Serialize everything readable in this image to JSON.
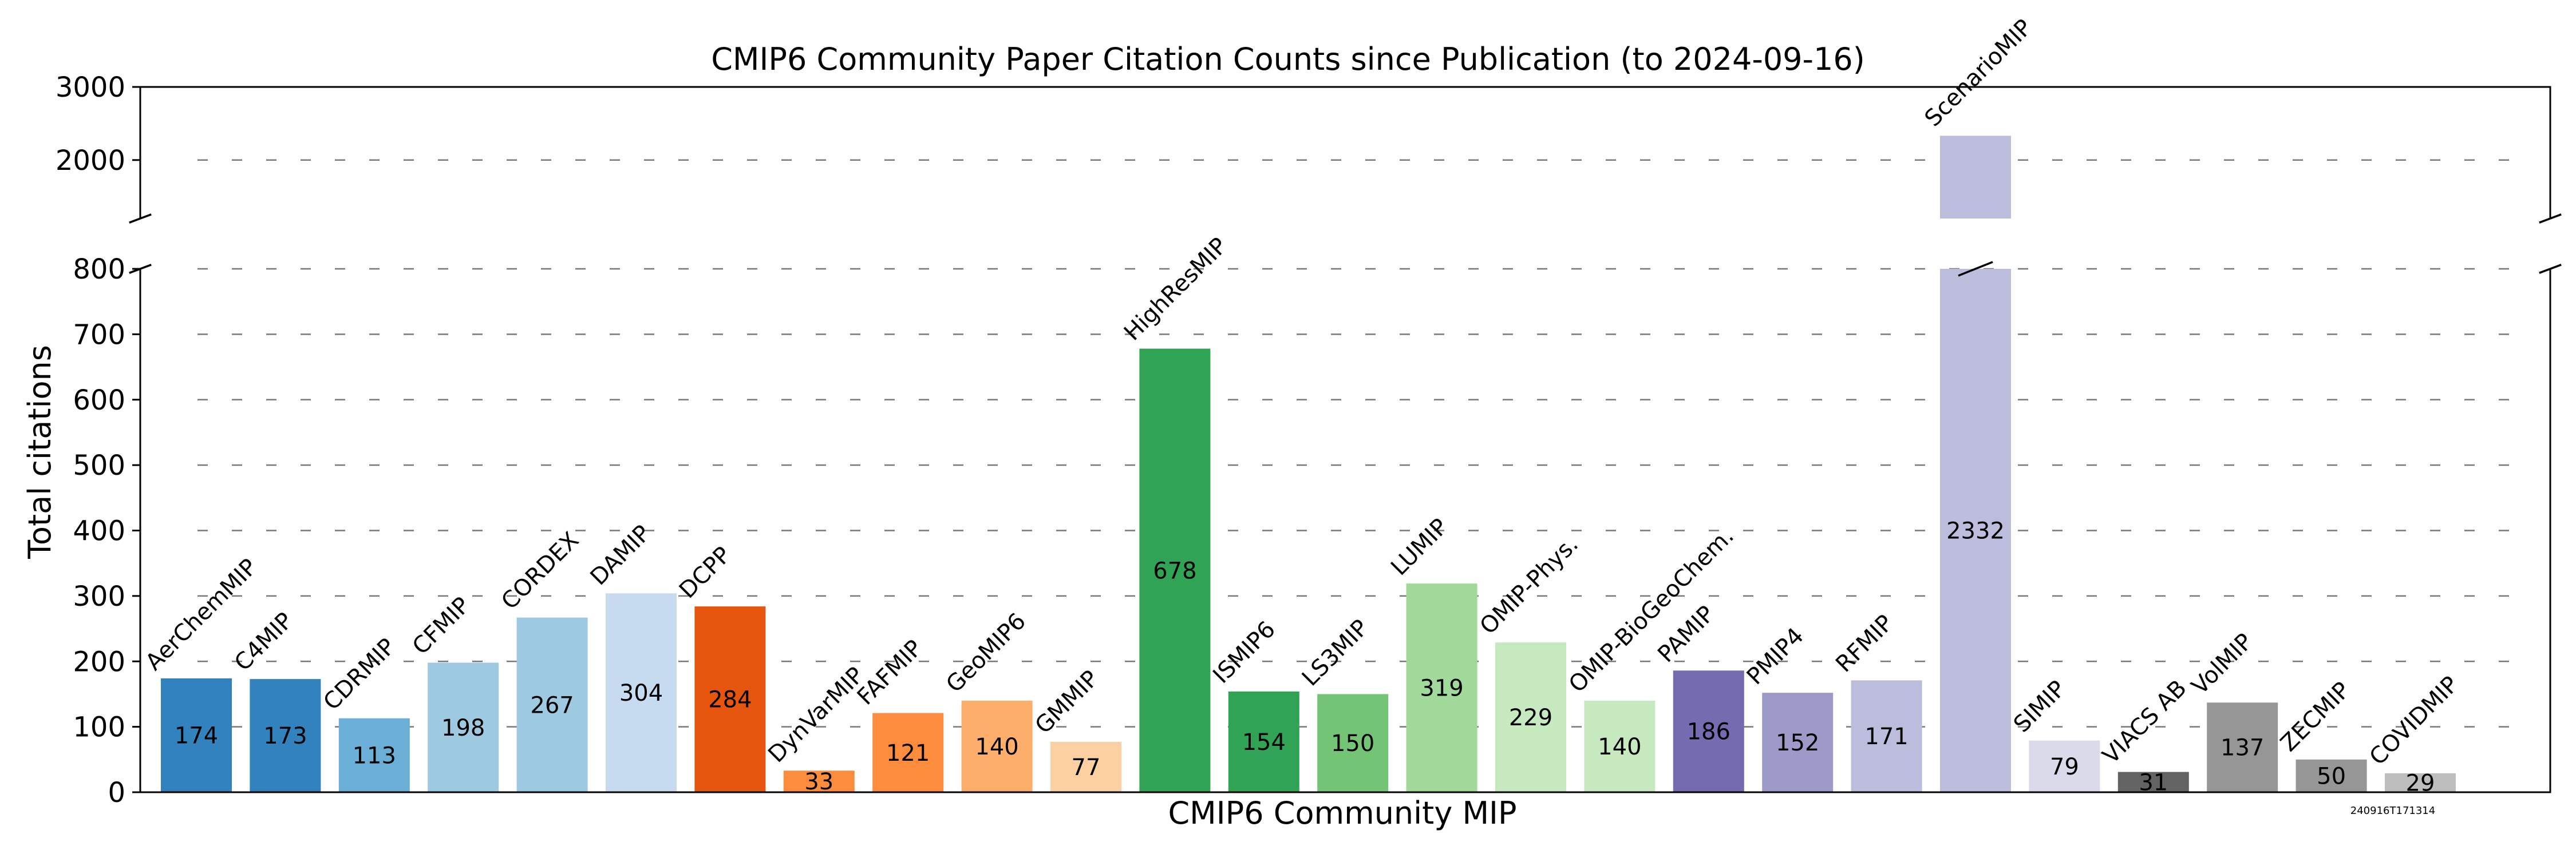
{
  "chart_data": {
    "type": "bar",
    "title": "CMIP6 Community Paper Citation Counts since Publication (to 2024-09-16)",
    "xlabel": "CMIP6 Community MIP",
    "ylabel": "Total citations",
    "broken_y_axis": true,
    "ylim_lower": [
      0,
      800
    ],
    "ylim_upper": [
      1200,
      3000
    ],
    "yticks_lower": [
      "0",
      "100",
      "200",
      "300",
      "400",
      "500",
      "600",
      "700",
      "800"
    ],
    "yticks_upper": [
      "2000",
      "3000"
    ],
    "grid": "horizontal dashed",
    "categories": [
      "AerChemMIP",
      "C4MIP",
      "CDRMIP",
      "CFMIP",
      "CORDEX",
      "DAMIP",
      "DCPP",
      "DynVarMIP",
      "FAFMIP",
      "GeoMIP6",
      "GMMIP",
      "HighResMIP",
      "ISMIP6",
      "LS3MIP",
      "LUMIP",
      "OMIP-Phys.",
      "OMIP-BioGeoChem.",
      "PAMIP",
      "PMIP4",
      "RFMIP",
      "ScenarioMIP",
      "SIMIP",
      "VIACS AB",
      "VolMIP",
      "ZECMIP",
      "COVIDMIP"
    ],
    "values": [
      174,
      173,
      113,
      198,
      267,
      304,
      284,
      33,
      121,
      140,
      77,
      678,
      154,
      150,
      319,
      229,
      140,
      186,
      152,
      171,
      2332,
      79,
      31,
      137,
      50,
      29
    ],
    "value_labels": [
      "174",
      "173",
      "113",
      "198",
      "267",
      "304",
      "284",
      "33",
      "121",
      "140",
      "77",
      "678",
      "154",
      "150",
      "319",
      "229",
      "140",
      "186",
      "152",
      "171",
      "2332",
      "79",
      "31",
      "137",
      "50",
      "29"
    ],
    "colors": [
      "#3182bd",
      "#3182bd",
      "#6baed6",
      "#9ecae1",
      "#9ecae1",
      "#c6dbef",
      "#e6550d",
      "#fd8d3c",
      "#fd8d3c",
      "#fdae6b",
      "#fdd0a2",
      "#31a354",
      "#31a354",
      "#74c476",
      "#a1d99b",
      "#c7e9c0",
      "#c7e9c0",
      "#756bb1",
      "#9e9ac8",
      "#bcbddc",
      "#bcbddc",
      "#dadaeb",
      "#636363",
      "#969696",
      "#969696",
      "#bdbdbd"
    ],
    "stamp": "240916T171314"
  }
}
